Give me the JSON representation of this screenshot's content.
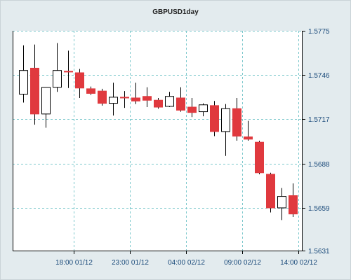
{
  "chart_data": {
    "type": "candlestick",
    "title": "GBPUSD1day",
    "xlabel": "",
    "ylabel": "",
    "ylim": [
      1.5631,
      1.5775
    ],
    "y_ticks": [
      "1.5775",
      "1.5746",
      "1.5717",
      "1.5688",
      "1.5659",
      "1.5631"
    ],
    "y_tick_values": [
      1.5775,
      1.5746,
      1.5717,
      1.5688,
      1.5659,
      1.5631
    ],
    "x_ticks": [
      {
        "index": 4.5,
        "label": "18:00 01/12"
      },
      {
        "index": 9.5,
        "label": "23:00 01/12"
      },
      {
        "index": 14.5,
        "label": "04:00 02/12"
      },
      {
        "index": 19.5,
        "label": "09:00 02/12"
      },
      {
        "index": 24.5,
        "label": "14:00 02/12"
      }
    ],
    "grid": true,
    "colors": {
      "up": "#ffffff",
      "down": "#e0393e",
      "outline": "#000000",
      "grid": "#7cc8cc",
      "plot_bg": "#ffffff"
    },
    "candles": [
      {
        "open": 1.57335,
        "high": 1.57655,
        "low": 1.5728,
        "close": 1.5749
      },
      {
        "open": 1.57505,
        "high": 1.5766,
        "low": 1.57135,
        "close": 1.57205
      },
      {
        "open": 1.57205,
        "high": 1.5738,
        "low": 1.57115,
        "close": 1.5738
      },
      {
        "open": 1.5738,
        "high": 1.5767,
        "low": 1.5735,
        "close": 1.5749
      },
      {
        "open": 1.57485,
        "high": 1.5762,
        "low": 1.57375,
        "close": 1.5748
      },
      {
        "open": 1.57475,
        "high": 1.575,
        "low": 1.5731,
        "close": 1.57375
      },
      {
        "open": 1.5737,
        "high": 1.57385,
        "low": 1.5733,
        "close": 1.5734
      },
      {
        "open": 1.57355,
        "high": 1.5737,
        "low": 1.5726,
        "close": 1.57275
      },
      {
        "open": 1.57275,
        "high": 1.5741,
        "low": 1.57195,
        "close": 1.57315
      },
      {
        "open": 1.57315,
        "high": 1.57355,
        "low": 1.57245,
        "close": 1.5731
      },
      {
        "open": 1.5731,
        "high": 1.5741,
        "low": 1.5727,
        "close": 1.5729
      },
      {
        "open": 1.5732,
        "high": 1.5738,
        "low": 1.5725,
        "close": 1.57295
      },
      {
        "open": 1.57295,
        "high": 1.5731,
        "low": 1.5724,
        "close": 1.5725
      },
      {
        "open": 1.57255,
        "high": 1.5735,
        "low": 1.5725,
        "close": 1.5732
      },
      {
        "open": 1.5731,
        "high": 1.5738,
        "low": 1.5722,
        "close": 1.5723
      },
      {
        "open": 1.5725,
        "high": 1.5731,
        "low": 1.57185,
        "close": 1.57215
      },
      {
        "open": 1.5722,
        "high": 1.57275,
        "low": 1.5719,
        "close": 1.57265
      },
      {
        "open": 1.5726,
        "high": 1.5729,
        "low": 1.5706,
        "close": 1.5709
      },
      {
        "open": 1.5709,
        "high": 1.5727,
        "low": 1.5693,
        "close": 1.5724
      },
      {
        "open": 1.5724,
        "high": 1.5731,
        "low": 1.5703,
        "close": 1.5706
      },
      {
        "open": 1.57055,
        "high": 1.5716,
        "low": 1.5703,
        "close": 1.5704
      },
      {
        "open": 1.5702,
        "high": 1.5703,
        "low": 1.5681,
        "close": 1.5682
      },
      {
        "open": 1.5681,
        "high": 1.5682,
        "low": 1.5656,
        "close": 1.5659
      },
      {
        "open": 1.5659,
        "high": 1.5672,
        "low": 1.5651,
        "close": 1.56665
      },
      {
        "open": 1.5667,
        "high": 1.5675,
        "low": 1.5653,
        "close": 1.5655
      }
    ]
  }
}
